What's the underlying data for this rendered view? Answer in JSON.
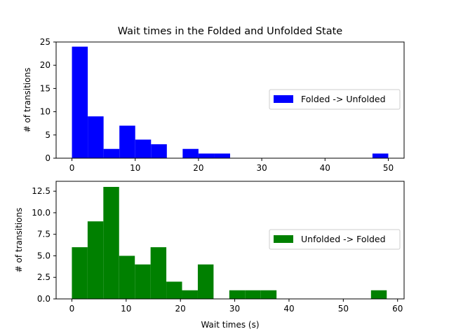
{
  "chart_data": [
    {
      "type": "bar",
      "title": "Wait times in the Folded and Unfolded State",
      "xlabel": "",
      "ylabel": "# of transitions",
      "xlim": [
        -2.5,
        52.5
      ],
      "ylim": [
        0,
        25
      ],
      "xticks": [
        0,
        10,
        20,
        30,
        40,
        50
      ],
      "yticks": [
        0,
        5,
        10,
        15,
        20,
        25
      ],
      "grid": false,
      "legend_position": "center-right",
      "color": "#0000ff",
      "series": [
        {
          "name": "Folded -> Unfolded",
          "bin_edges": [
            0,
            2.5,
            5,
            7.5,
            10,
            12.5,
            15,
            17.5,
            20,
            22.5,
            25,
            27.5,
            30,
            32.5,
            35,
            37.5,
            40,
            42.5,
            45,
            47.5,
            50
          ],
          "counts": [
            24,
            9,
            2,
            7,
            4,
            3,
            0,
            2,
            1,
            1,
            0,
            0,
            0,
            0,
            0,
            0,
            0,
            0,
            0,
            1
          ]
        }
      ]
    },
    {
      "type": "bar",
      "title": "",
      "xlabel": "Wait times (s)",
      "ylabel": "# of transitions",
      "xlim": [
        -2.9,
        61.2
      ],
      "ylim": [
        0,
        13.65
      ],
      "xticks": [
        0,
        10,
        20,
        30,
        40,
        50,
        60
      ],
      "yticks": [
        "0.0",
        "2.5",
        "5.0",
        "7.5",
        "10.0",
        "12.5"
      ],
      "grid": false,
      "legend_position": "center-right",
      "color": "#008000",
      "series": [
        {
          "name": "Unfolded -> Folded",
          "bin_edges": [
            0,
            2.9,
            5.8,
            8.7,
            11.6,
            14.5,
            17.4,
            20.3,
            23.2,
            26.1,
            29.0,
            31.9,
            34.8,
            37.7,
            40.6,
            43.5,
            46.4,
            49.3,
            52.2,
            55.1,
            58.0
          ],
          "counts": [
            6,
            9,
            13,
            5,
            4,
            6,
            2,
            1,
            4,
            0,
            1,
            1,
            1,
            0,
            0,
            0,
            0,
            0,
            0,
            1
          ]
        }
      ]
    }
  ]
}
